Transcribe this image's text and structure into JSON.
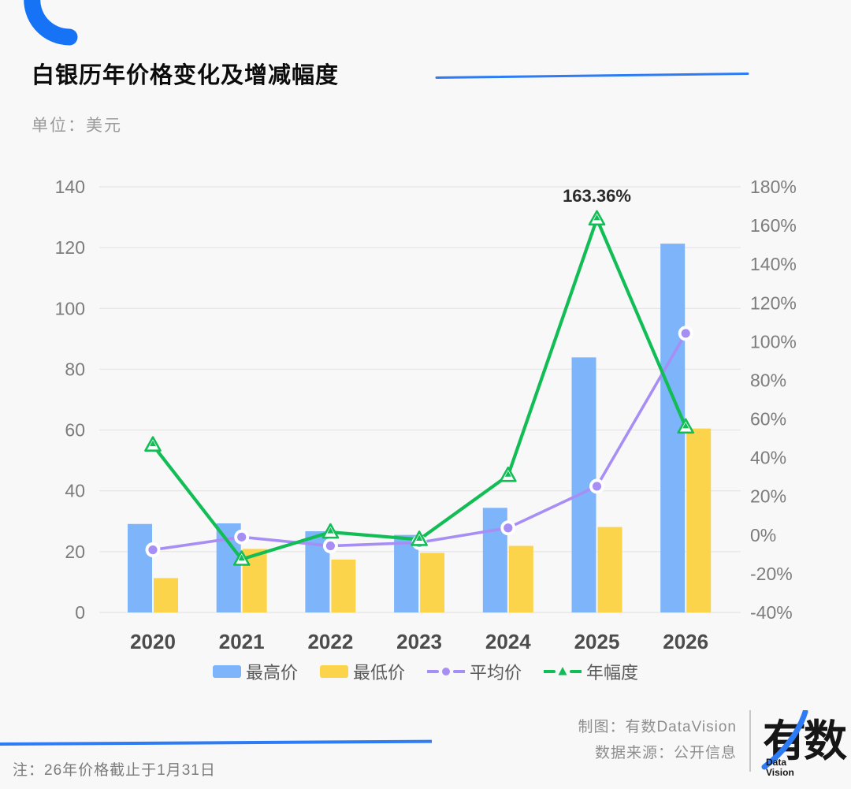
{
  "header": {
    "title": "白银历年价格变化及增减幅度",
    "unit_label": "单位：美元"
  },
  "chart_data": {
    "type": "combo-bar-line",
    "title": "白银历年价格变化及增减幅度",
    "unit": "美元",
    "categories": [
      "2020",
      "2021",
      "2022",
      "2023",
      "2024",
      "2025",
      "2026"
    ],
    "series": [
      {
        "name": "最高价",
        "type": "bar",
        "axis": "left",
        "color": "#7db4fa",
        "values": [
          29.1,
          29.3,
          26.7,
          25.5,
          34.4,
          83.9,
          121.3
        ]
      },
      {
        "name": "最低价",
        "type": "bar",
        "axis": "left",
        "color": "#fcd44c",
        "values": [
          11.3,
          20.9,
          17.4,
          19.6,
          21.9,
          28.1,
          60.5
        ]
      },
      {
        "name": "平均价",
        "type": "line",
        "axis": "left",
        "color": "#a78ef5",
        "marker": "circle",
        "values": [
          20.6,
          24.8,
          21.9,
          23.0,
          27.8,
          41.5,
          91.8
        ]
      },
      {
        "name": "年幅度",
        "type": "line",
        "axis": "right",
        "color": "#12bd56",
        "marker": "triangle",
        "values": [
          46.5,
          -12.5,
          1.5,
          -2.3,
          30.8,
          163.36,
          55.8
        ]
      }
    ],
    "left_axis": {
      "min": 0,
      "max": 140,
      "step": 20,
      "tick_labels": [
        "140",
        "120",
        "100",
        "80",
        "60",
        "40",
        "20",
        "0"
      ]
    },
    "right_axis": {
      "min": -40,
      "max": 180,
      "step": 20,
      "tick_labels": [
        "180%",
        "160%",
        "140%",
        "120%",
        "100%",
        "80%",
        "60%",
        "40%",
        "20%",
        "0%",
        "-20%",
        "-40%"
      ]
    },
    "annotation": {
      "text": "163.36%",
      "category": "2025",
      "series": "年幅度"
    },
    "grid": true,
    "legend_position": "bottom"
  },
  "footer": {
    "credit": "制图：有数DataVision",
    "source": "数据来源：公开信息",
    "logo_text": "有数",
    "logo_sub1": "Data",
    "logo_sub2": "Vision"
  },
  "note": "注：26年价格截止于1月31日",
  "colors": {
    "accent_blue": "#2d7bf5",
    "arc_blue": "#1673f6",
    "grid_line": "#e7e7e7",
    "axis_text": "#7c7c7c",
    "x_label_text": "#4c4c4c",
    "annotation_text": "#2b2b2b",
    "background": "#f8f8f9"
  }
}
